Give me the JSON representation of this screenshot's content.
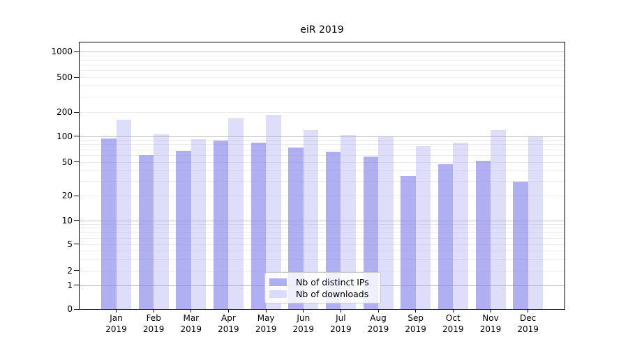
{
  "figure": {
    "title": "eiR 2019"
  },
  "chart_data": {
    "type": "bar",
    "title": "eiR 2019",
    "categories": [
      "Jan 2019",
      "Feb 2019",
      "Mar 2019",
      "Apr 2019",
      "May 2019",
      "Jun 2019",
      "Jul 2019",
      "Aug 2019",
      "Sep 2019",
      "Oct 2019",
      "Nov 2019",
      "Dec 2019"
    ],
    "series": [
      {
        "name": "Nb of distinct IPs",
        "fill": "rgba(132,132,235,0.65)",
        "hex_on_white": "#aaaaf1",
        "values": [
          93,
          60,
          67,
          88,
          84,
          73,
          66,
          58,
          34,
          47,
          51,
          29
        ]
      },
      {
        "name": "Nb of downloads",
        "fill": "rgba(160,160,240,0.35)",
        "hex_on_white": "#dedef8",
        "values": [
          160,
          105,
          92,
          168,
          186,
          118,
          103,
          100,
          76,
          84,
          118,
          100
        ]
      }
    ],
    "yscale": "symlog",
    "yticks": [
      0,
      1,
      2,
      5,
      10,
      20,
      50,
      100,
      200,
      500,
      1000
    ],
    "ylim": [
      0,
      1400
    ],
    "xlabel": "",
    "ylabel": "",
    "grid": true,
    "legend_position": "lower center"
  },
  "colors": {
    "grid_minor": "#ebebeb",
    "grid_major": "#c0c0c0",
    "spine": "#000000",
    "background": "#ffffff",
    "text": "#000000"
  }
}
